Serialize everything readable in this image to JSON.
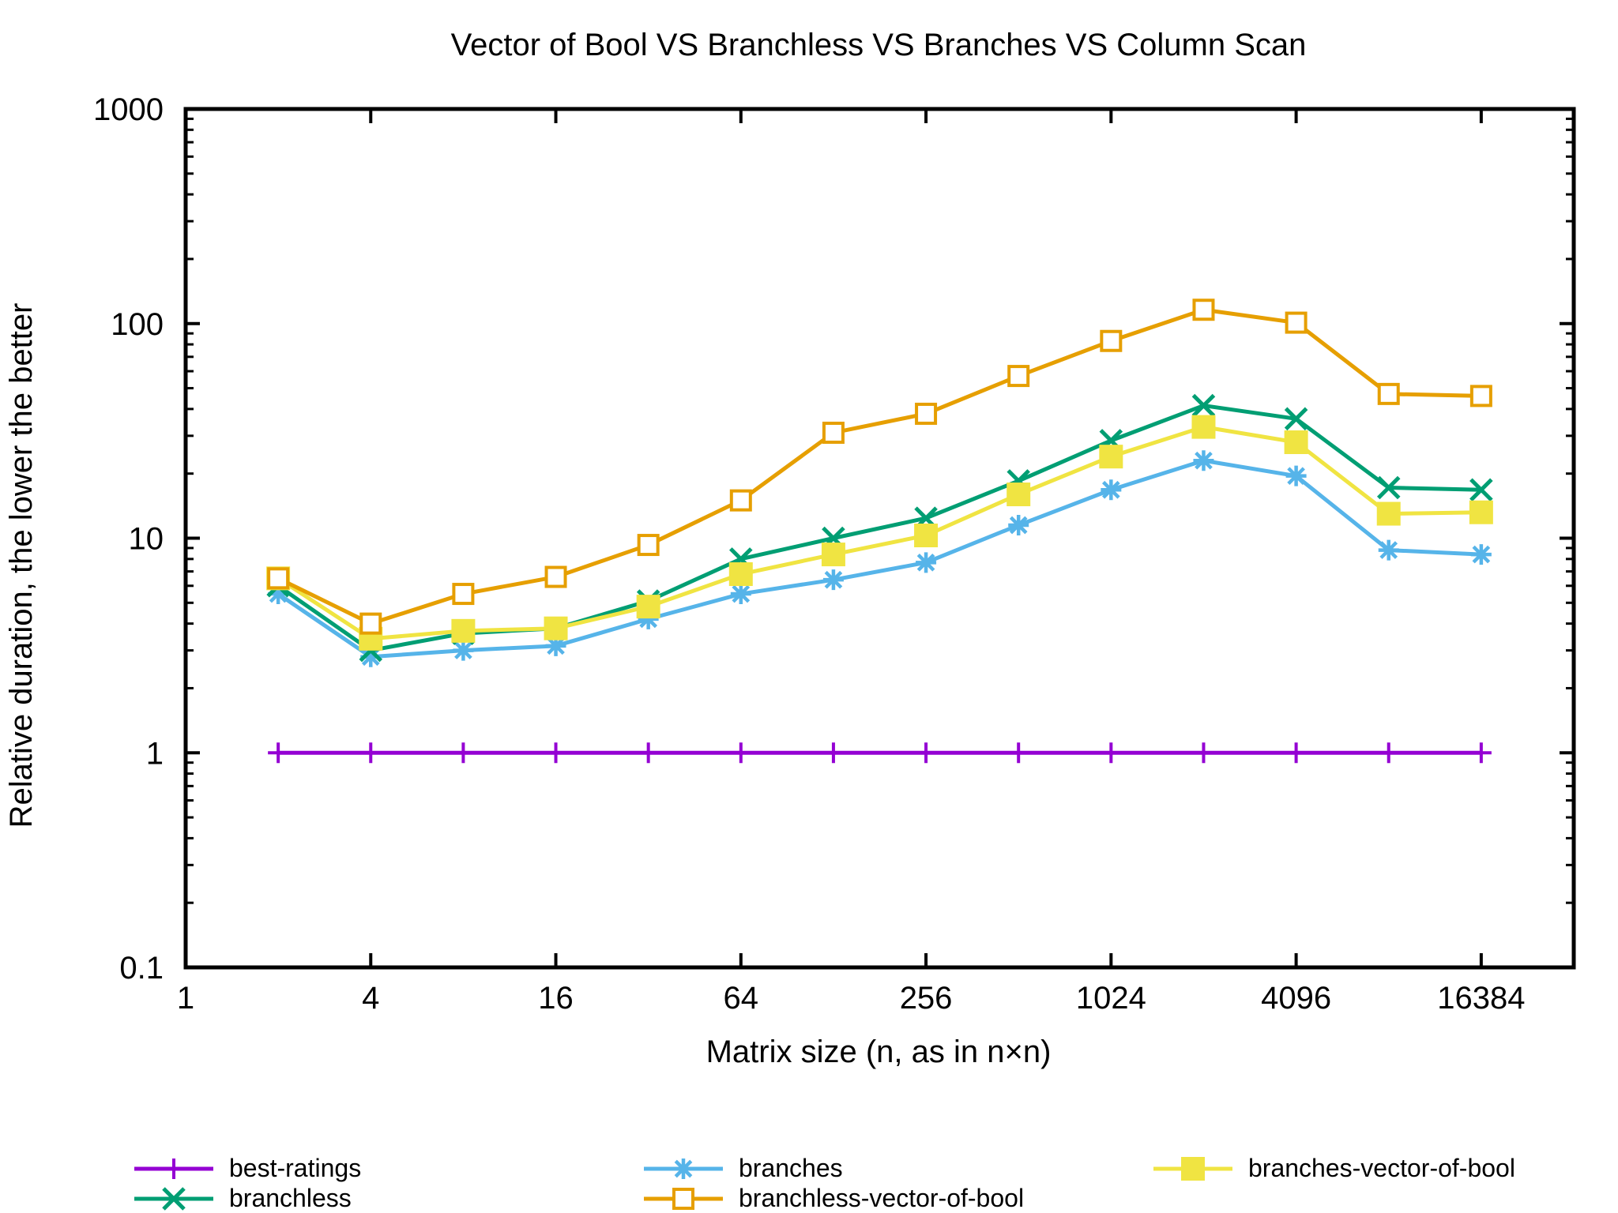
{
  "chart_data": {
    "type": "line",
    "title": "Vector of Bool VS Branchless VS Branches VS Column Scan",
    "xlabel": "Matrix size (n, as in n×n)",
    "ylabel": "Relative duration, the lower the better",
    "x_scale": "log2",
    "y_scale": "log10",
    "xlim": [
      1,
      32768
    ],
    "ylim": [
      0.1,
      1000
    ],
    "x_ticks": [
      "1",
      "4",
      "16",
      "64",
      "256",
      "1024",
      "4096",
      "16384"
    ],
    "y_ticks": [
      "0.1",
      "1",
      "10",
      "100",
      "1000"
    ],
    "grid": false,
    "legend_position": "bottom",
    "x": [
      2,
      4,
      8,
      16,
      32,
      64,
      128,
      256,
      512,
      1024,
      2048,
      4096,
      8192,
      16384
    ],
    "series": [
      {
        "name": "best-ratings",
        "color": "#9400d3",
        "marker": "plus",
        "values": [
          1,
          1,
          1,
          1,
          1,
          1,
          1,
          1,
          1,
          1,
          1,
          1,
          1,
          1
        ]
      },
      {
        "name": "branches",
        "color": "#56b4e9",
        "marker": "star",
        "values": [
          5.5,
          2.8,
          3.0,
          3.15,
          4.2,
          5.5,
          6.4,
          7.7,
          11.5,
          16.8,
          23,
          19.5,
          8.8,
          8.4
        ]
      },
      {
        "name": "branches-vector-of-bool",
        "color": "#f0e442",
        "marker": "filled-square",
        "values": [
          6.5,
          3.4,
          3.7,
          3.8,
          4.8,
          6.8,
          8.4,
          10.3,
          16,
          24,
          33,
          28,
          13,
          13.2
        ]
      },
      {
        "name": "branchless",
        "color": "#009e73",
        "marker": "x",
        "values": [
          6.0,
          3.0,
          3.6,
          3.8,
          5.1,
          8.0,
          10.0,
          12.4,
          18.5,
          28.5,
          41.5,
          36,
          17.2,
          16.8
        ]
      },
      {
        "name": "branchless-vector-of-bool",
        "color": "#e69f00",
        "marker": "open-square",
        "values": [
          6.5,
          4.0,
          5.5,
          6.6,
          9.3,
          15,
          31,
          38,
          57,
          83,
          116,
          101,
          47,
          46
        ]
      }
    ]
  }
}
